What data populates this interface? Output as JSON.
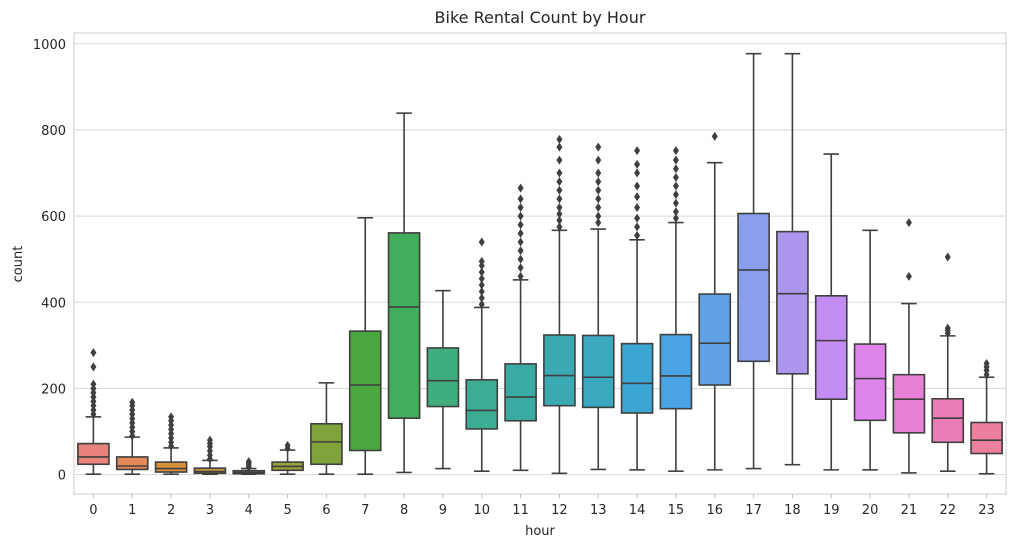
{
  "chart_data": {
    "type": "box",
    "title": "Bike Rental Count by Hour",
    "xlabel": "hour",
    "ylabel": "count",
    "ylim": [
      -45,
      1025
    ],
    "yticks": [
      "0",
      "200",
      "400",
      "600",
      "800",
      "1000"
    ],
    "grid": true,
    "categories": [
      "0",
      "1",
      "2",
      "3",
      "4",
      "5",
      "6",
      "7",
      "8",
      "9",
      "10",
      "11",
      "12",
      "13",
      "14",
      "15",
      "16",
      "17",
      "18",
      "19",
      "20",
      "21",
      "22",
      "23"
    ],
    "colors": [
      "#e8837c",
      "#e48a5a",
      "#d9913c",
      "#c3973b",
      "#a79b3a",
      "#98a13a",
      "#7fa23a",
      "#4aa73d",
      "#42ad5b",
      "#3fad7d",
      "#3bad92",
      "#3aaba2",
      "#3aa9b1",
      "#3ba8c0",
      "#3ca6d3",
      "#4aa3e2",
      "#5fa1e6",
      "#8b9ded",
      "#ac96ee",
      "#c48df1",
      "#de84eb",
      "#e680d3",
      "#ea7db8",
      "#ec7e9e"
    ],
    "boxes": [
      {
        "q1": 24,
        "median": 41,
        "q3": 72,
        "whislo": 1,
        "whishi": 134,
        "outliers": [
          140,
          150,
          160,
          170,
          180,
          190,
          200,
          210,
          250,
          283
        ]
      },
      {
        "q1": 12,
        "median": 20,
        "q3": 41,
        "whislo": 1,
        "whishi": 87,
        "outliers": [
          90,
          100,
          110,
          120,
          130,
          140,
          150,
          160,
          168
        ]
      },
      {
        "q1": 6,
        "median": 14,
        "q3": 29,
        "whislo": 1,
        "whishi": 62,
        "outliers": [
          66,
          75,
          85,
          95,
          105,
          115,
          125,
          134
        ]
      },
      {
        "q1": 3,
        "median": 7,
        "q3": 15,
        "whislo": 1,
        "whishi": 33,
        "outliers": [
          36,
          45,
          55,
          65,
          72,
          80
        ]
      },
      {
        "q1": 2,
        "median": 5,
        "q3": 9,
        "whislo": 1,
        "whishi": 14,
        "outliers": [
          17,
          22,
          27,
          30
        ]
      },
      {
        "q1": 10,
        "median": 19,
        "q3": 29,
        "whislo": 1,
        "whishi": 57,
        "outliers": [
          61,
          68
        ]
      },
      {
        "q1": 24,
        "median": 76,
        "q3": 118,
        "whislo": 1,
        "whishi": 213,
        "outliers": []
      },
      {
        "q1": 56,
        "median": 208,
        "q3": 333,
        "whislo": 1,
        "whishi": 596,
        "outliers": []
      },
      {
        "q1": 131,
        "median": 389,
        "q3": 561,
        "whislo": 5,
        "whishi": 839,
        "outliers": []
      },
      {
        "q1": 158,
        "median": 218,
        "q3": 294,
        "whislo": 14,
        "whishi": 427,
        "outliers": []
      },
      {
        "q1": 106,
        "median": 149,
        "q3": 220,
        "whislo": 8,
        "whishi": 388,
        "outliers": [
          395,
          410,
          425,
          440,
          455,
          470,
          485,
          495,
          540
        ]
      },
      {
        "q1": 125,
        "median": 180,
        "q3": 257,
        "whislo": 10,
        "whishi": 452,
        "outliers": [
          460,
          480,
          500,
          520,
          540,
          560,
          580,
          600,
          620,
          640,
          665
        ]
      },
      {
        "q1": 160,
        "median": 230,
        "q3": 324,
        "whislo": 3,
        "whishi": 567,
        "outliers": [
          575,
          590,
          605,
          620,
          640,
          660,
          680,
          700,
          730,
          760,
          778
        ]
      },
      {
        "q1": 156,
        "median": 226,
        "q3": 323,
        "whislo": 12,
        "whishi": 570,
        "outliers": [
          585,
          600,
          620,
          640,
          660,
          680,
          700,
          730,
          760
        ]
      },
      {
        "q1": 143,
        "median": 212,
        "q3": 304,
        "whislo": 11,
        "whishi": 545,
        "outliers": [
          555,
          575,
          595,
          620,
          645,
          670,
          700,
          720,
          752
        ]
      },
      {
        "q1": 153,
        "median": 229,
        "q3": 325,
        "whislo": 8,
        "whishi": 585,
        "outliers": [
          595,
          610,
          630,
          650,
          670,
          690,
          710,
          730,
          752
        ]
      },
      {
        "q1": 208,
        "median": 305,
        "q3": 419,
        "whislo": 11,
        "whishi": 724,
        "outliers": [
          785
        ]
      },
      {
        "q1": 263,
        "median": 475,
        "q3": 606,
        "whislo": 14,
        "whishi": 977,
        "outliers": []
      },
      {
        "q1": 234,
        "median": 420,
        "q3": 564,
        "whislo": 23,
        "whishi": 977,
        "outliers": []
      },
      {
        "q1": 175,
        "median": 311,
        "q3": 415,
        "whislo": 11,
        "whishi": 744,
        "outliers": []
      },
      {
        "q1": 126,
        "median": 223,
        "q3": 303,
        "whislo": 11,
        "whishi": 567,
        "outliers": []
      },
      {
        "q1": 97,
        "median": 175,
        "q3": 232,
        "whislo": 4,
        "whishi": 397,
        "outliers": [
          460,
          585
        ]
      },
      {
        "q1": 75,
        "median": 131,
        "q3": 176,
        "whislo": 8,
        "whishi": 322,
        "outliers": [
          328,
          335,
          340,
          505
        ]
      },
      {
        "q1": 49,
        "median": 80,
        "q3": 121,
        "whislo": 2,
        "whishi": 226,
        "outliers": [
          232,
          242,
          250,
          258
        ]
      }
    ]
  }
}
